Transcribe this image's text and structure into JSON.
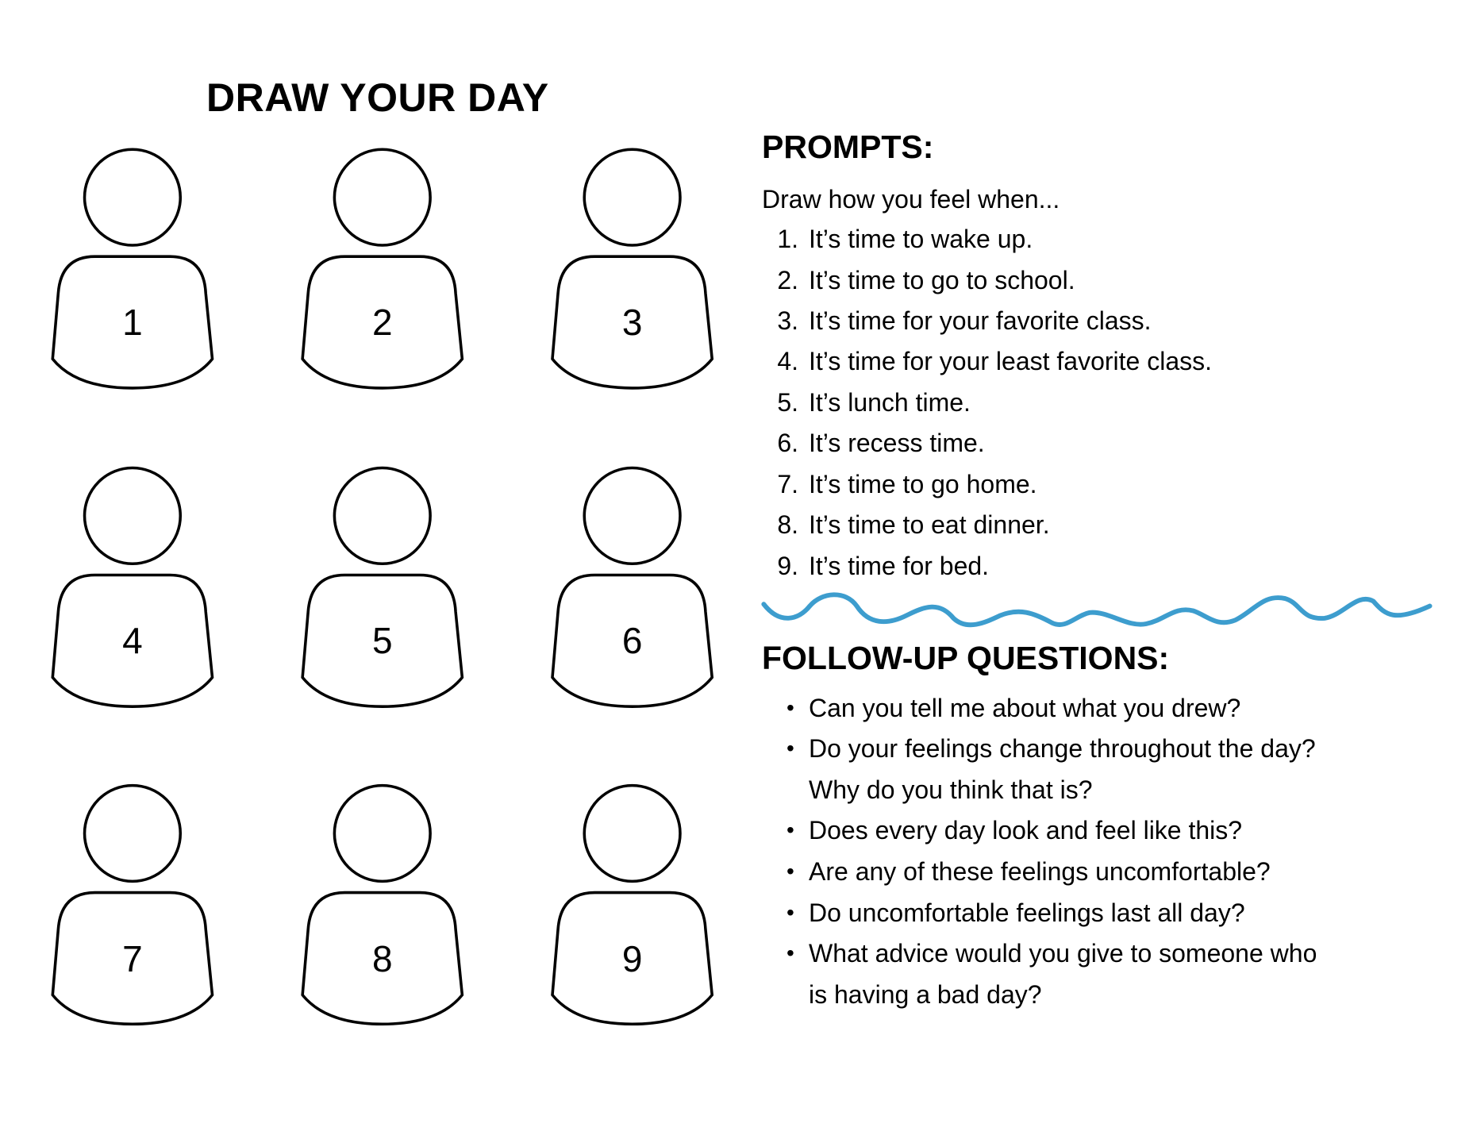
{
  "title": "DRAW YOUR DAY",
  "figures": [
    "1",
    "2",
    "3",
    "4",
    "5",
    "6",
    "7",
    "8",
    "9"
  ],
  "prompts": {
    "heading": "PROMPTS:",
    "intro": "Draw how you feel when...",
    "items": [
      {
        "n": "1.",
        "text": "It’s time to wake up."
      },
      {
        "n": "2.",
        "text": "It’s time to go to school."
      },
      {
        "n": "3.",
        "text": "It’s time for your favorite class."
      },
      {
        "n": "4.",
        "text": "It’s time for your least favorite class."
      },
      {
        "n": "5.",
        "text": "It’s lunch time."
      },
      {
        "n": "6.",
        "text": "It’s recess time."
      },
      {
        "n": "7.",
        "text": "It’s time to go home."
      },
      {
        "n": "8.",
        "text": "It’s time to eat dinner."
      },
      {
        "n": "9.",
        "text": "It’s time for bed."
      }
    ]
  },
  "divider_color": "#3d9dce",
  "follow_up": {
    "heading": "FOLLOW-UP QUESTIONS:",
    "bullet": "•",
    "lines": [
      {
        "bullet": true,
        "text": "Can you tell me about what you drew?"
      },
      {
        "bullet": true,
        "text": "Do your feelings change throughout the day?"
      },
      {
        "bullet": false,
        "text": "Why do you think that is?"
      },
      {
        "bullet": true,
        "text": "Does every day look and feel like this?"
      },
      {
        "bullet": true,
        "text": "Are any of these feelings uncomfortable?"
      },
      {
        "bullet": true,
        "text": "Do uncomfortable feelings last all day?"
      },
      {
        "bullet": true,
        "text": "What advice would you give to someone who"
      },
      {
        "bullet": false,
        "text": "is having a bad day?"
      }
    ]
  }
}
